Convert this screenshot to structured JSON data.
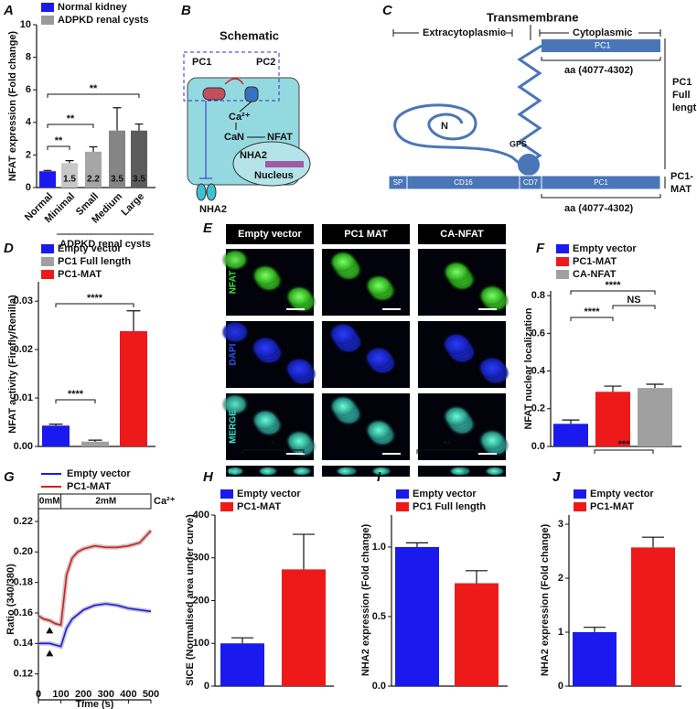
{
  "panel_labels": [
    "A",
    "B",
    "C",
    "D",
    "E",
    "F",
    "G",
    "H",
    "I",
    "J"
  ],
  "schematic_b": {
    "title": "Schematic",
    "pc1": "PC1",
    "pc2": "PC2",
    "calcium": "Ca²⁺",
    "can": "CaN",
    "nfat": "NFAT",
    "nha2_nucleus": "NHA2",
    "nucleus": "Nucleus",
    "nha2_membrane": "NHA2"
  },
  "schematic_c": {
    "transmembrane": "Transmembrane",
    "extracytoplasmic": "Extracytoplasmic",
    "cytoplasmic": "Cytoplasmic",
    "pc1_top": "PC1",
    "aa_top": "aa (4077-4302)",
    "full_length": [
      "PC1",
      "Full",
      "length"
    ],
    "n_terminus": "N",
    "gps": "GPS",
    "domains": [
      "SP",
      "CD16",
      "CD7",
      "PC1"
    ],
    "aa_bottom": "aa (4077-4302)",
    "mat": [
      "PC1-",
      "MAT"
    ]
  },
  "micrographs_e": {
    "columns": [
      "Empty vector",
      "PC1 MAT",
      "CA-NFAT"
    ],
    "rows": [
      "NFAT",
      "DAPI",
      "MERGE",
      "Z"
    ]
  },
  "chart_data": [
    {
      "type": "bar",
      "ylabel": "NFAT expression (Fold change)",
      "legend": [
        {
          "name": "Normal kidney",
          "color": "#1a1aee"
        },
        {
          "name": "ADPKD renal cysts",
          "color": "#9a9a9a"
        }
      ],
      "categories": [
        "Normal",
        "Minimal",
        "Small",
        "Medium",
        "Large"
      ],
      "values": [
        1.0,
        1.5,
        2.2,
        3.5,
        3.5
      ],
      "errors": [
        0.05,
        0.15,
        0.3,
        1.4,
        0.4
      ],
      "value_labels": [
        null,
        "1.5",
        "2.2",
        "3.5",
        "3.5"
      ],
      "colors": [
        "#1a1aee",
        "#c8c8c8",
        "#a6a6a6",
        "#858585",
        "#5c5c5c"
      ],
      "group_label": "ADPKD renal cysts",
      "ylim": [
        0,
        10
      ],
      "yticks": [
        0,
        2,
        4,
        6,
        8,
        10
      ],
      "significance": [
        "**",
        "**",
        "**"
      ]
    },
    {
      "type": "bar",
      "ylabel": "NFAT activity (Firefly/Renilla)",
      "legend": [
        {
          "name": "Empty vector",
          "color": "#1a1aee"
        },
        {
          "name": "PC1 Full length",
          "color": "#a0a0a0"
        },
        {
          "name": "PC1-MAT",
          "color": "#ee1a1a"
        }
      ],
      "values": [
        0.0043,
        0.001,
        0.0238
      ],
      "errors": [
        0.0003,
        0.0003,
        0.0042
      ],
      "colors": [
        "#1a1aee",
        "#a0a0a0",
        "#ee1a1a"
      ],
      "ylim": [
        0,
        0.034
      ],
      "yticks": [
        {
          "value": 0,
          "label": "0.00"
        },
        0.01,
        0.02,
        0.03
      ],
      "significance": [
        "****",
        "****"
      ]
    },
    {
      "type": "bar",
      "ylabel": "NFAT nuclear localization",
      "legend": [
        {
          "name": "Empty vector",
          "color": "#1a1aee"
        },
        {
          "name": "PC1-MAT",
          "color": "#ee1a1a"
        },
        {
          "name": "CA-NFAT",
          "color": "#a0a0a0"
        }
      ],
      "values": [
        0.12,
        0.29,
        0.31
      ],
      "errors": [
        0.02,
        0.03,
        0.02
      ],
      "colors": [
        "#1a1aee",
        "#ee1a1a",
        "#a0a0a0"
      ],
      "ylim": [
        0,
        0.825
      ],
      "yticks": [
        {
          "value": 0,
          "label": "0.0"
        },
        0.2,
        0.4,
        0.6,
        0.8
      ],
      "significance": [
        "****",
        "****",
        "NS"
      ]
    },
    {
      "type": "line",
      "ylabel": "Ratio (340/380)",
      "xlabel": "Time (s)",
      "x": [
        0,
        25,
        50,
        75,
        100,
        125,
        150,
        175,
        200,
        250,
        300,
        350,
        400,
        450,
        500
      ],
      "series": [
        {
          "name": "Empty vector",
          "color": "#1a1aee",
          "values": [
            0.14,
            0.14,
            0.14,
            0.139,
            0.138,
            0.15,
            0.156,
            0.159,
            0.162,
            0.165,
            0.166,
            0.165,
            0.163,
            0.162,
            0.161
          ]
        },
        {
          "name": "PC1-MAT",
          "color": "#dd1a1a",
          "values": [
            0.158,
            0.156,
            0.155,
            0.153,
            0.152,
            0.185,
            0.196,
            0.2,
            0.202,
            0.204,
            0.203,
            0.203,
            0.204,
            0.206,
            0.214
          ]
        }
      ],
      "xlim": [
        0,
        500
      ],
      "xticks": [
        0,
        100,
        200,
        300,
        400,
        500
      ],
      "ylim": [
        0.103,
        0.238
      ],
      "yticks": [
        0.12,
        0.14,
        0.16,
        0.18,
        {
          "value": 0.2,
          "label": "0.20"
        },
        0.22
      ],
      "annotations": [
        "0mM",
        "2mM",
        "Ca²⁺"
      ]
    },
    {
      "type": "bar",
      "ylabel": "SICE (Normalised area under curve)",
      "legend": [
        {
          "name": "Empty vector",
          "color": "#1a1aee"
        },
        {
          "name": "PC1-MAT",
          "color": "#ee1a1a"
        }
      ],
      "values": [
        100,
        273
      ],
      "errors": [
        13,
        82
      ],
      "colors": [
        "#1a1aee",
        "#ee1a1a"
      ],
      "ylim": [
        0,
        400
      ],
      "yticks": [
        0,
        100,
        200,
        300,
        400
      ],
      "significance": [
        "*"
      ]
    },
    {
      "type": "bar",
      "ylabel": "NHA2 expression (Fold change)",
      "legend": [
        {
          "name": "Empty vector",
          "color": "#1a1aee"
        },
        {
          "name": "PC1 Full length",
          "color": "#ee1a1a"
        }
      ],
      "values": [
        1.0,
        0.74
      ],
      "errors": [
        0.03,
        0.09
      ],
      "colors": [
        "#1a1aee",
        "#ee1a1a"
      ],
      "ylim": [
        0,
        1.23
      ],
      "yticks": [
        {
          "value": 0,
          "label": "0.0"
        },
        {
          "value": 0.5,
          "label": "0.5"
        },
        {
          "value": 1,
          "label": "1.0"
        }
      ],
      "significance": [
        "**"
      ]
    },
    {
      "type": "bar",
      "ylabel": "NHA2 expression (Fold change)",
      "legend": [
        {
          "name": "Empty vector",
          "color": "#1a1aee"
        },
        {
          "name": "PC1-MAT",
          "color": "#ee1a1a"
        }
      ],
      "values": [
        1.0,
        2.57
      ],
      "errors": [
        0.09,
        0.19
      ],
      "colors": [
        "#1a1aee",
        "#ee1a1a"
      ],
      "ylim": [
        0,
        3.17
      ],
      "yticks": [
        0,
        1,
        2,
        3
      ],
      "significance": [
        "***"
      ]
    }
  ]
}
